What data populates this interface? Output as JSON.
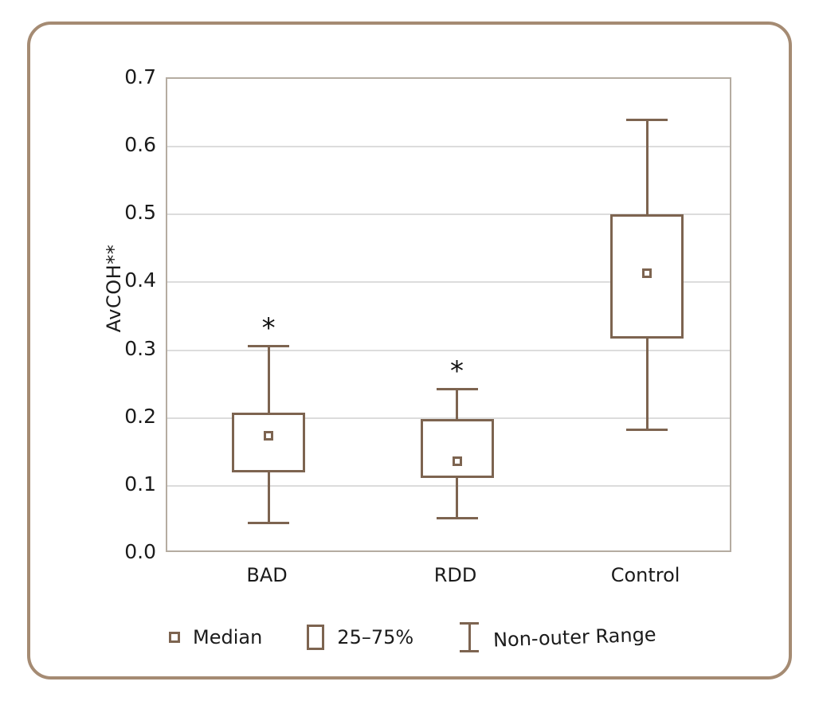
{
  "frame": {
    "border_color": "#a58b73",
    "background": "#ffffff"
  },
  "chart_data": {
    "type": "box",
    "title": "",
    "xlabel": "",
    "ylabel": "AvCOH**",
    "ylim": [
      0.0,
      0.7
    ],
    "yticks": [
      0.0,
      0.1,
      0.2,
      0.3,
      0.4,
      0.5,
      0.6,
      0.7
    ],
    "grid": true,
    "categories": [
      "BAD",
      "RDD",
      "Control"
    ],
    "series": [
      {
        "category": "BAD",
        "whisker_low": 0.045,
        "q1": 0.12,
        "median": 0.174,
        "q3": 0.208,
        "whisker_high": 0.306,
        "annotation": "*"
      },
      {
        "category": "RDD",
        "whisker_low": 0.052,
        "q1": 0.112,
        "median": 0.136,
        "q3": 0.198,
        "whisker_high": 0.243,
        "annotation": "*"
      },
      {
        "category": "Control",
        "whisker_low": 0.183,
        "q1": 0.317,
        "median": 0.414,
        "q3": 0.5,
        "whisker_high": 0.64,
        "annotation": ""
      }
    ],
    "legend": [
      {
        "icon": "median-marker-icon",
        "label": "Median"
      },
      {
        "icon": "box-icon",
        "label": "25–75%"
      },
      {
        "icon": "whisker-icon",
        "label": "Non-outer Range"
      }
    ],
    "legend_position": "bottom",
    "colors": {
      "box_stroke": "#7d6450",
      "grid": "#dcdcdc",
      "plot_border": "#b5aca1",
      "text": "#1b1b1b",
      "annotation": "#111111"
    }
  }
}
